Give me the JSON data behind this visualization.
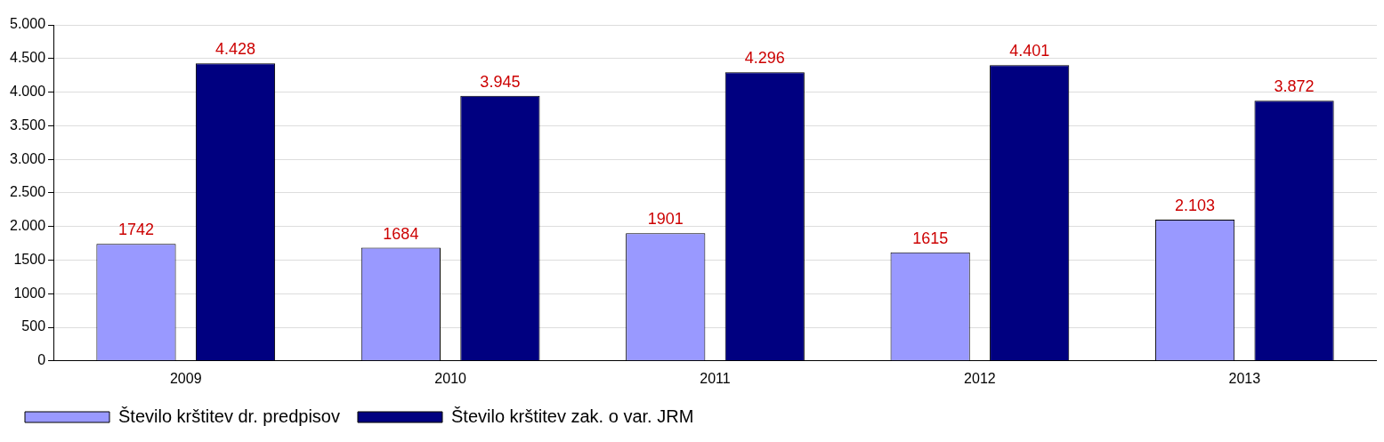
{
  "chart_data": {
    "type": "bar",
    "categories": [
      "2009",
      "2010",
      "2011",
      "2012",
      "2013"
    ],
    "series": [
      {
        "name": "Število krštitev dr. predpisov",
        "color": "#9999ff",
        "values": [
          1742,
          1684,
          1901,
          1615,
          2103
        ],
        "value_labels": [
          "1742",
          "1684",
          "1901",
          "1615",
          "2.103"
        ]
      },
      {
        "name": "Število krštitev zak. o var. JRM",
        "color": "#000080",
        "values": [
          4428,
          3945,
          4296,
          4401,
          3872
        ],
        "value_labels": [
          "4.428",
          "3.945",
          "4.296",
          "4.401",
          "3.872"
        ]
      }
    ],
    "ylim": [
      0,
      5000
    ],
    "yticks": [
      {
        "value": 0,
        "label": "0"
      },
      {
        "value": 500,
        "label": "500"
      },
      {
        "value": 1000,
        "label": "1000"
      },
      {
        "value": 1500,
        "label": "1500"
      },
      {
        "value": 2000,
        "label": "2.000"
      },
      {
        "value": 2500,
        "label": "2.500"
      },
      {
        "value": 3000,
        "label": "3.000"
      },
      {
        "value": 3500,
        "label": "3.500"
      },
      {
        "value": 4000,
        "label": "4.000"
      },
      {
        "value": 4500,
        "label": "4.500"
      },
      {
        "value": 5000,
        "label": "5.000"
      }
    ],
    "grid": "y",
    "legend": "bottom"
  }
}
